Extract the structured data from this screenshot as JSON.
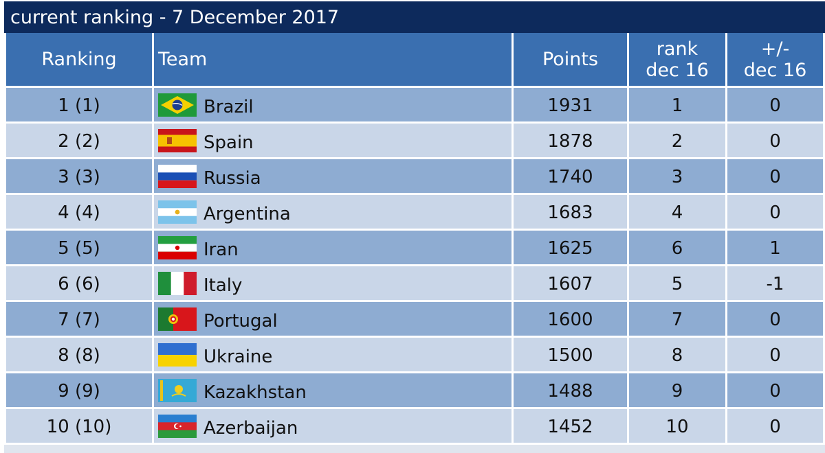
{
  "title": "current ranking - 7 December 2017",
  "columns": {
    "ranking": "Ranking",
    "team": "Team",
    "points": "Points",
    "rank_line1": "rank",
    "rank_line2": "dec 16",
    "diff_line1": "+/-",
    "diff_line2": "dec 16"
  },
  "rows": [
    {
      "ranking": "1 (1)",
      "team": "Brazil",
      "flag": "brazil-flag-icon",
      "points": "1931",
      "rank_dec16": "1",
      "diff": "0"
    },
    {
      "ranking": "2 (2)",
      "team": "Spain",
      "flag": "spain-flag-icon",
      "points": "1878",
      "rank_dec16": "2",
      "diff": "0"
    },
    {
      "ranking": "3 (3)",
      "team": "Russia",
      "flag": "russia-flag-icon",
      "points": "1740",
      "rank_dec16": "3",
      "diff": "0"
    },
    {
      "ranking": "4 (4)",
      "team": "Argentina",
      "flag": "argentina-flag-icon",
      "points": "1683",
      "rank_dec16": "4",
      "diff": "0"
    },
    {
      "ranking": "5 (5)",
      "team": "Iran",
      "flag": "iran-flag-icon",
      "points": "1625",
      "rank_dec16": "6",
      "diff": "1"
    },
    {
      "ranking": "6 (6)",
      "team": "Italy",
      "flag": "italy-flag-icon",
      "points": "1607",
      "rank_dec16": "5",
      "diff": "-1"
    },
    {
      "ranking": "7 (7)",
      "team": "Portugal",
      "flag": "portugal-flag-icon",
      "points": "1600",
      "rank_dec16": "7",
      "diff": "0"
    },
    {
      "ranking": "8 (8)",
      "team": "Ukraine",
      "flag": "ukraine-flag-icon",
      "points": "1500",
      "rank_dec16": "8",
      "diff": "0"
    },
    {
      "ranking": "9 (9)",
      "team": "Kazakhstan",
      "flag": "kazakhstan-flag-icon",
      "points": "1488",
      "rank_dec16": "9",
      "diff": "0"
    },
    {
      "ranking": "10 (10)",
      "team": "Azerbaijan",
      "flag": "azerbaijan-flag-icon",
      "points": "1452",
      "rank_dec16": "10",
      "diff": "0"
    }
  ],
  "colors": {
    "title_bar": "#0d2a5c",
    "header": "#3a6fb0",
    "row_odd": "#8eacd2",
    "row_even": "#c9d6e8"
  }
}
